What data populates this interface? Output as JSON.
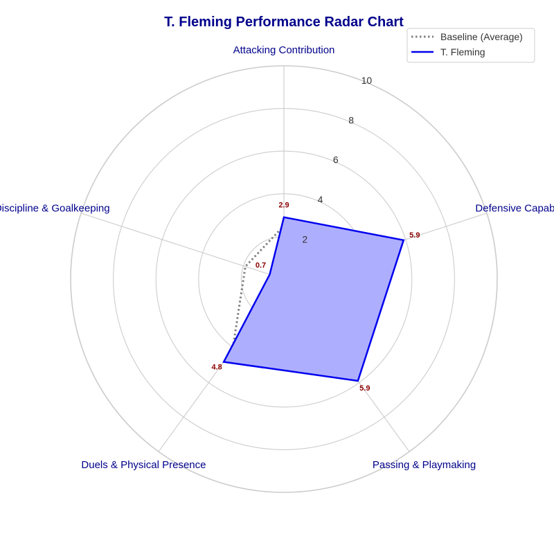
{
  "chart_data": {
    "type": "radar",
    "title": "T. Fleming Performance Radar Chart",
    "categories": [
      "Attacking Contribution",
      "Defensive Capability",
      "Passing & Playmaking",
      "Duels & Physical Presence",
      "Discipline & Goalkeeping"
    ],
    "radial_ticks": [
      2,
      4,
      6,
      8,
      10
    ],
    "rlim": [
      0,
      10
    ],
    "grid": true,
    "legend_position": "top-right",
    "series": [
      {
        "name": "Baseline (Average)",
        "values": [
          2.5,
          3.4,
          3.2,
          4.1,
          1.9
        ],
        "line_style": "dotted",
        "color": "#808080",
        "fill": false
      },
      {
        "name": "T. Fleming",
        "values": [
          2.9,
          5.9,
          5.9,
          4.8,
          0.7
        ],
        "line_style": "solid",
        "color": "#0000ee",
        "fill": true,
        "fill_color": "#aeaefe"
      }
    ],
    "value_labels": [
      "2.9",
      "5.9",
      "5.9",
      "4.8",
      "0.7"
    ],
    "colors": {
      "title": "#00008b",
      "axis_label": "#00008b",
      "value_label": "#8b0000",
      "grid": "#cccccc"
    }
  }
}
